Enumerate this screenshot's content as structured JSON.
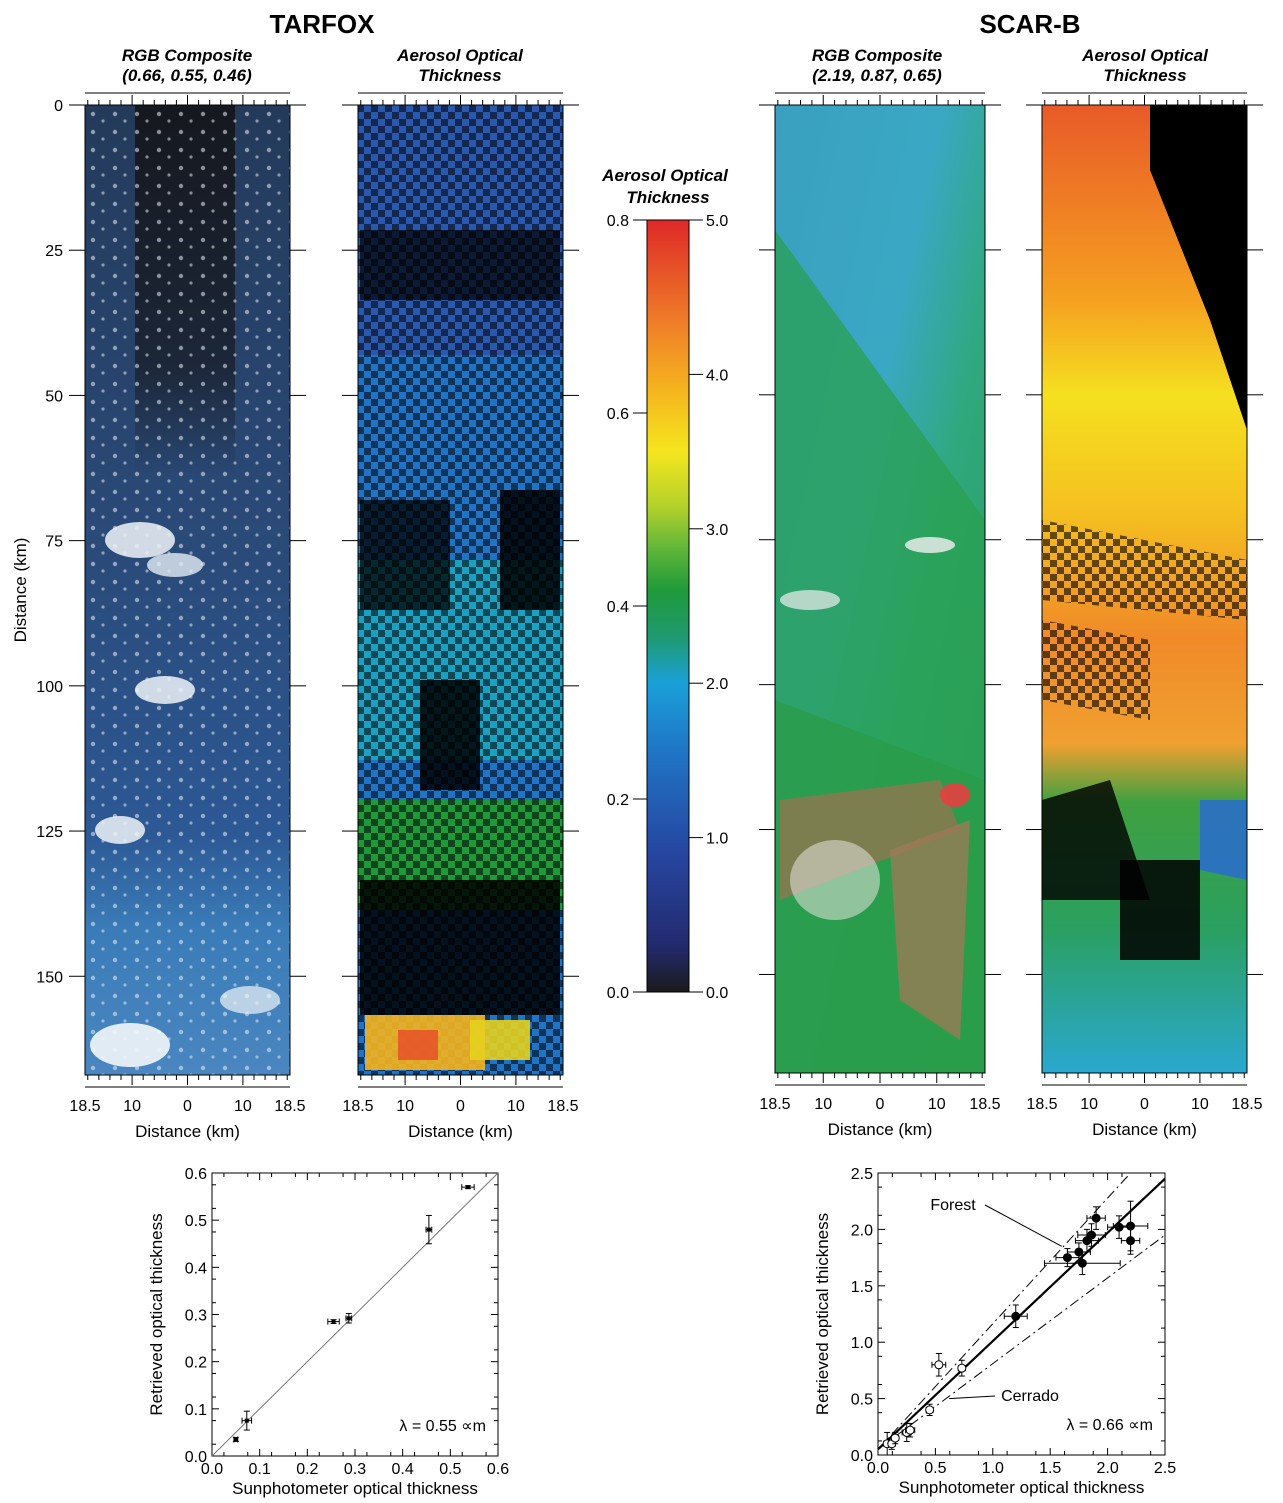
{
  "figure": {
    "tarfox_title": "TARFOX",
    "scarb_title": "SCAR-B"
  },
  "panels": {
    "tarfox_rgb": {
      "title_line1": "RGB Composite",
      "title_line2": "(0.66, 0.55, 0.46)"
    },
    "tarfox_aot": {
      "title_line1": "Aerosol Optical",
      "title_line2": "Thickness"
    },
    "scarb_rgb": {
      "title_line1": "RGB Composite",
      "title_line2": "(2.19, 0.87, 0.65)"
    },
    "scarb_aot": {
      "title_line1": "Aerosol Optical",
      "title_line2": "Thickness"
    }
  },
  "image_axes": {
    "y_label": "Distance (km)",
    "x_label": "Distance (km)",
    "y_ticks": [
      "0",
      "25",
      "50",
      "75",
      "100",
      "125",
      "150"
    ],
    "x_ticks": [
      "18.5",
      "10",
      "0",
      "10",
      "18.5"
    ]
  },
  "colorbar": {
    "title_line1": "Aerosol Optical",
    "title_line2": "Thickness",
    "left_ticks": [
      "0.8",
      "0.6",
      "0.4",
      "0.2",
      "0.0"
    ],
    "right_ticks": [
      "5.0",
      "4.0",
      "3.0",
      "2.0",
      "1.0",
      "0.0"
    ],
    "colors": [
      "#1a1a1a",
      "#232a6e",
      "#2646a0",
      "#1f78c8",
      "#1aa0d8",
      "#1f9a70",
      "#1f9a3a",
      "#5ab43a",
      "#b4d22a",
      "#f5e61e",
      "#f5b41e",
      "#f08228",
      "#e65028",
      "#e02828"
    ]
  },
  "chart_data": [
    {
      "type": "scatter",
      "xlabel": "Sunphotometer optical thickness",
      "ylabel": "Retrieved optical thickness",
      "xlim": [
        0.0,
        0.6
      ],
      "ylim": [
        0.0,
        0.6
      ],
      "x_ticks": [
        "0.0",
        "0.1",
        "0.2",
        "0.3",
        "0.4",
        "0.5",
        "0.6"
      ],
      "y_ticks": [
        "0.0",
        "0.1",
        "0.2",
        "0.3",
        "0.4",
        "0.5",
        "0.6"
      ],
      "annotation": "λ = 0.55 ∝m",
      "points": [
        {
          "x": 0.05,
          "y": 0.035,
          "xerr": 0.004,
          "yerr": 0.004
        },
        {
          "x": 0.073,
          "y": 0.075,
          "xerr": 0.01,
          "yerr": 0.02
        },
        {
          "x": 0.255,
          "y": 0.285,
          "xerr": 0.012,
          "yerr": 0.004
        },
        {
          "x": 0.287,
          "y": 0.292,
          "xerr": 0.006,
          "yerr": 0.01
        },
        {
          "x": 0.455,
          "y": 0.48,
          "xerr": 0.006,
          "yerr": 0.03
        },
        {
          "x": 0.537,
          "y": 0.57,
          "xerr": 0.013,
          "yerr": 0.003
        }
      ],
      "lines": [
        {
          "style": "solid-thin",
          "x": [
            0.0,
            0.6
          ],
          "y": [
            0.0,
            0.6
          ]
        }
      ]
    },
    {
      "type": "scatter",
      "xlabel": "Sunphotometer optical thickness",
      "ylabel": "Retrieved optical thickness",
      "xlim": [
        0.0,
        2.5
      ],
      "ylim": [
        0.0,
        2.5
      ],
      "x_ticks": [
        "0.0",
        "0.5",
        "1.0",
        "1.5",
        "2.0",
        "2.5"
      ],
      "y_ticks": [
        "0.0",
        "0.5",
        "1.0",
        "1.5",
        "2.0",
        "2.5"
      ],
      "annotation": "λ = 0.66 ∝m",
      "labels": {
        "forest": "Forest",
        "cerrado": "Cerrado"
      },
      "series": [
        {
          "marker": "filled",
          "points": [
            {
              "x": 1.2,
              "y": 1.23,
              "xerr": 0.1,
              "yerr": 0.1
            },
            {
              "x": 1.65,
              "y": 1.75,
              "xerr": 0.1,
              "yerr": 0.08
            },
            {
              "x": 1.75,
              "y": 1.8,
              "xerr": 0.1,
              "yerr": 0.08
            },
            {
              "x": 1.78,
              "y": 1.7,
              "xerr": 0.33,
              "yerr": 0.1
            },
            {
              "x": 1.82,
              "y": 1.9,
              "xerr": 0.1,
              "yerr": 0.1
            },
            {
              "x": 1.86,
              "y": 1.95,
              "xerr": 0.12,
              "yerr": 0.1
            },
            {
              "x": 1.9,
              "y": 2.1,
              "xerr": 0.08,
              "yerr": 0.1
            },
            {
              "x": 2.1,
              "y": 2.02,
              "xerr": 0.1,
              "yerr": 0.1
            },
            {
              "x": 2.2,
              "y": 2.03,
              "xerr": 0.15,
              "yerr": 0.22
            },
            {
              "x": 2.2,
              "y": 1.9,
              "xerr": 0.08,
              "yerr": 0.12
            }
          ]
        },
        {
          "marker": "open",
          "points": [
            {
              "x": 0.08,
              "y": 0.1,
              "xerr": 0.03,
              "yerr": 0.1
            },
            {
              "x": 0.12,
              "y": 0.1,
              "xerr": 0.03,
              "yerr": 0.05
            },
            {
              "x": 0.15,
              "y": 0.15,
              "xerr": 0.03,
              "yerr": 0.05
            },
            {
              "x": 0.25,
              "y": 0.2,
              "xerr": 0.04,
              "yerr": 0.08
            },
            {
              "x": 0.28,
              "y": 0.22,
              "xerr": 0.04,
              "yerr": 0.06
            },
            {
              "x": 0.45,
              "y": 0.4,
              "xerr": 0.03,
              "yerr": 0.05
            },
            {
              "x": 0.53,
              "y": 0.8,
              "xerr": 0.06,
              "yerr": 0.1
            },
            {
              "x": 0.73,
              "y": 0.77,
              "xerr": 0.03,
              "yerr": 0.07
            }
          ]
        }
      ],
      "lines": [
        {
          "style": "solid-thick",
          "x": [
            0.0,
            2.5
          ],
          "y": [
            0.05,
            2.45
          ]
        },
        {
          "style": "dashdot",
          "x": [
            0.0,
            2.2
          ],
          "y": [
            0.05,
            2.5
          ]
        },
        {
          "style": "dashdot",
          "x": [
            0.0,
            2.5
          ],
          "y": [
            0.05,
            1.95
          ]
        }
      ]
    }
  ]
}
